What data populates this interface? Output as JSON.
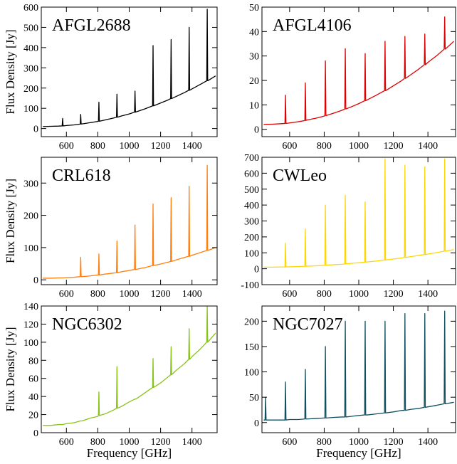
{
  "chart_data": [
    {
      "type": "line",
      "title": "AFGL2688",
      "ylabel": "Flux Density [Jy]",
      "color": "#000000",
      "x": [
        450,
        458,
        461,
        464,
        500,
        550,
        573,
        576,
        579,
        600,
        650,
        688,
        691,
        694,
        700,
        750,
        800,
        804,
        807,
        810,
        850,
        900,
        919,
        922,
        925,
        950,
        1000,
        1034,
        1037,
        1040,
        1050,
        1100,
        1149,
        1152,
        1155,
        1200,
        1250,
        1264,
        1267,
        1270,
        1300,
        1350,
        1379,
        1382,
        1385,
        1400,
        1450,
        1494,
        1497,
        1500,
        1550
      ],
      "values": [
        10,
        10,
        10,
        10,
        11,
        12,
        13,
        50,
        13,
        15,
        18,
        22,
        70,
        22,
        23,
        29,
        35,
        36,
        130,
        36,
        43,
        52,
        56,
        170,
        56,
        62,
        72,
        81,
        185,
        81,
        84,
        97,
        112,
        410,
        112,
        126,
        142,
        148,
        440,
        148,
        159,
        177,
        189,
        500,
        189,
        196,
        217,
        236,
        590,
        236,
        260
      ],
      "xlim": [
        440,
        1560
      ],
      "xticks": [
        600,
        800,
        1000,
        1200,
        1400
      ],
      "ylim": [
        -40,
        600
      ],
      "yticks": [
        0,
        100,
        200,
        300,
        400,
        500,
        600
      ]
    },
    {
      "type": "line",
      "title": "AFGL4106",
      "color": "#dd0000",
      "x": [
        450,
        458,
        461,
        464,
        500,
        550,
        573,
        576,
        579,
        600,
        650,
        688,
        691,
        694,
        700,
        750,
        800,
        804,
        807,
        810,
        850,
        900,
        919,
        922,
        925,
        950,
        1000,
        1034,
        1037,
        1040,
        1050,
        1100,
        1149,
        1152,
        1155,
        1200,
        1250,
        1264,
        1267,
        1270,
        1300,
        1350,
        1379,
        1382,
        1385,
        1400,
        1450,
        1494,
        1497,
        1500,
        1550
      ],
      "values": [
        2,
        2,
        2,
        2,
        2.1,
        2.3,
        2.4,
        14,
        2.4,
        2.6,
        3.1,
        3.6,
        19,
        3.6,
        3.8,
        4.5,
        5.4,
        5.6,
        28,
        5.6,
        6.5,
        7.7,
        8.3,
        33,
        8.3,
        9,
        10.5,
        11.7,
        31,
        11.7,
        12.1,
        13.9,
        15.8,
        36,
        15.8,
        17.8,
        20,
        20.8,
        38,
        20.8,
        22.3,
        24.8,
        26.4,
        39,
        26.4,
        27.4,
        30.1,
        32.8,
        46,
        32.8,
        36
      ],
      "xlim": [
        440,
        1560
      ],
      "xticks": [
        600,
        800,
        1000,
        1200,
        1400
      ],
      "ylim": [
        -3,
        50
      ],
      "yticks": [
        0,
        10,
        20,
        30,
        40,
        50
      ]
    },
    {
      "type": "line",
      "title": "CRL618",
      "ylabel": "Flux Density [Jy]",
      "color": "#ff7f0e",
      "x": [
        450,
        458,
        461,
        464,
        500,
        550,
        573,
        576,
        579,
        600,
        650,
        688,
        691,
        694,
        700,
        750,
        800,
        804,
        807,
        810,
        850,
        900,
        919,
        922,
        925,
        950,
        1000,
        1034,
        1037,
        1040,
        1050,
        1100,
        1149,
        1152,
        1155,
        1200,
        1250,
        1264,
        1267,
        1270,
        1300,
        1350,
        1379,
        1382,
        1385,
        1400,
        1450,
        1494,
        1497,
        1500,
        1550
      ],
      "values": [
        5,
        5,
        5,
        5,
        5,
        6,
        6,
        6,
        6,
        7,
        8,
        10,
        70,
        10,
        10,
        12,
        15,
        15,
        80,
        15,
        18,
        21,
        22,
        120,
        22,
        25,
        29,
        32,
        170,
        32,
        33,
        38,
        44,
        235,
        44,
        49,
        55,
        57,
        255,
        57,
        62,
        69,
        73,
        290,
        73,
        76,
        84,
        91,
        355,
        91,
        100
      ],
      "xlim": [
        440,
        1560
      ],
      "xticks": [
        600,
        800,
        1000,
        1200,
        1400
      ],
      "ylim": [
        -15,
        380
      ],
      "yticks": [
        0,
        100,
        200,
        300
      ]
    },
    {
      "type": "line",
      "title": "CWLeo",
      "color": "#ffd700",
      "x": [
        450,
        458,
        461,
        464,
        500,
        550,
        573,
        576,
        579,
        600,
        650,
        688,
        691,
        694,
        700,
        750,
        800,
        804,
        807,
        810,
        850,
        900,
        919,
        922,
        925,
        950,
        1000,
        1034,
        1037,
        1040,
        1050,
        1100,
        1149,
        1152,
        1155,
        1200,
        1250,
        1264,
        1267,
        1270,
        1300,
        1350,
        1379,
        1382,
        1385,
        1400,
        1450,
        1494,
        1497,
        1500,
        1550
      ],
      "values": [
        10,
        10,
        10,
        10,
        10,
        11,
        11,
        160,
        11,
        12,
        14,
        15,
        250,
        15,
        16,
        18,
        21,
        22,
        400,
        22,
        25,
        28,
        30,
        460,
        30,
        33,
        38,
        41,
        420,
        41,
        43,
        48,
        55,
        690,
        55,
        61,
        68,
        71,
        650,
        71,
        76,
        84,
        89,
        640,
        89,
        92,
        101,
        110,
        690,
        110,
        120
      ],
      "xlim": [
        440,
        1560
      ],
      "xticks": [
        600,
        800,
        1000,
        1200,
        1400
      ],
      "ylim": [
        -100,
        700
      ],
      "yticks": [
        -100,
        0,
        100,
        200,
        300,
        400,
        500,
        600,
        700
      ]
    },
    {
      "type": "line",
      "title": "NGC6302",
      "ylabel": "Flux Density [Jy]",
      "xlabel": "Frequency [GHz]",
      "color": "#88c417",
      "x": [
        450,
        458,
        461,
        464,
        500,
        550,
        573,
        576,
        579,
        600,
        650,
        688,
        691,
        694,
        700,
        750,
        800,
        804,
        807,
        810,
        850,
        900,
        919,
        922,
        925,
        950,
        1000,
        1034,
        1037,
        1040,
        1050,
        1100,
        1149,
        1152,
        1155,
        1200,
        1250,
        1264,
        1267,
        1270,
        1300,
        1350,
        1379,
        1382,
        1385,
        1400,
        1450,
        1494,
        1497,
        1500,
        1550
      ],
      "values": [
        8,
        8,
        8,
        8,
        8,
        9,
        9,
        9,
        9,
        10,
        11,
        13,
        13,
        13,
        13,
        16,
        18,
        19,
        45,
        19,
        21,
        25,
        27,
        73,
        27,
        29,
        34,
        37,
        37,
        37,
        38,
        44,
        50,
        82,
        50,
        55,
        62,
        64,
        95,
        64,
        69,
        76,
        81,
        115,
        81,
        84,
        92,
        100,
        140,
        100,
        110
      ],
      "xlim": [
        440,
        1560
      ],
      "xticks": [
        600,
        800,
        1000,
        1200,
        1400
      ],
      "ylim": [
        0,
        140
      ],
      "yticks": [
        0,
        20,
        40,
        60,
        80,
        100,
        120,
        140
      ]
    },
    {
      "type": "line",
      "title": "NGC7027",
      "xlabel": "Frequency [GHz]",
      "color": "#0f4f5f",
      "x": [
        450,
        458,
        461,
        464,
        500,
        550,
        573,
        576,
        579,
        600,
        650,
        688,
        691,
        694,
        700,
        750,
        800,
        804,
        807,
        810,
        850,
        900,
        919,
        922,
        925,
        950,
        1000,
        1034,
        1037,
        1040,
        1050,
        1100,
        1149,
        1152,
        1155,
        1200,
        1250,
        1264,
        1267,
        1270,
        1300,
        1350,
        1379,
        1382,
        1385,
        1400,
        1450,
        1494,
        1497,
        1500,
        1550
      ],
      "values": [
        5,
        5,
        50,
        5,
        5,
        5,
        5,
        80,
        5,
        6,
        6,
        7,
        105,
        7,
        7,
        8,
        9,
        9,
        150,
        9,
        10,
        11,
        11,
        200,
        11,
        12,
        14,
        15,
        200,
        15,
        15,
        17,
        19,
        200,
        19,
        21,
        24,
        24,
        215,
        24,
        26,
        28,
        30,
        215,
        30,
        31,
        34,
        37,
        220,
        37,
        40
      ],
      "xlim": [
        440,
        1560
      ],
      "xticks": [
        600,
        800,
        1000,
        1200,
        1400
      ],
      "ylim": [
        -20,
        230
      ],
      "yticks": [
        0,
        50,
        100,
        150,
        200
      ]
    }
  ]
}
